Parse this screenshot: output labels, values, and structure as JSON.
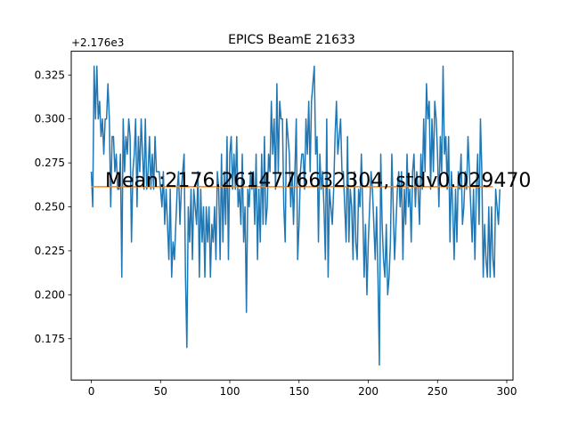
{
  "chart_data": {
    "type": "line",
    "title": "EPICS BeamE 21633",
    "xlabel": "",
    "ylabel": "",
    "y_offset_label": "+2.176e3",
    "xlim": [
      -14.5,
      304.5
    ],
    "ylim": [
      0.1515,
      0.3385
    ],
    "x_ticks": [
      0,
      50,
      100,
      150,
      200,
      250,
      300
    ],
    "x_tick_labels": [
      "0",
      "50",
      "100",
      "150",
      "200",
      "250",
      "300"
    ],
    "y_ticks": [
      0.175,
      0.2,
      0.225,
      0.25,
      0.275,
      0.3,
      0.325
    ],
    "y_tick_labels": [
      "0.175",
      "0.200",
      "0.225",
      "0.250",
      "0.275",
      "0.300",
      "0.325"
    ],
    "grid": false,
    "annotation": "Mean:2176.2614776632304, stdv0.029470",
    "series": [
      {
        "color": "#1f77b4",
        "x_start": 0,
        "values": [
          0.27,
          0.25,
          0.33,
          0.3,
          0.33,
          0.3,
          0.31,
          0.29,
          0.3,
          0.28,
          0.3,
          0.3,
          0.32,
          0.3,
          0.25,
          0.29,
          0.29,
          0.27,
          0.28,
          0.26,
          0.26,
          0.28,
          0.21,
          0.3,
          0.27,
          0.29,
          0.28,
          0.3,
          0.29,
          0.23,
          0.27,
          0.28,
          0.3,
          0.25,
          0.29,
          0.27,
          0.3,
          0.28,
          0.26,
          0.3,
          0.26,
          0.27,
          0.29,
          0.26,
          0.28,
          0.26,
          0.29,
          0.27,
          0.27,
          0.27,
          0.26,
          0.25,
          0.27,
          0.24,
          0.26,
          0.24,
          0.22,
          0.26,
          0.21,
          0.23,
          0.22,
          0.24,
          0.26,
          0.27,
          0.24,
          0.26,
          0.27,
          0.28,
          0.21,
          0.17,
          0.25,
          0.23,
          0.26,
          0.22,
          0.26,
          0.25,
          0.24,
          0.27,
          0.21,
          0.26,
          0.23,
          0.25,
          0.21,
          0.25,
          0.23,
          0.25,
          0.21,
          0.24,
          0.23,
          0.25,
          0.22,
          0.27,
          0.26,
          0.22,
          0.28,
          0.23,
          0.27,
          0.24,
          0.29,
          0.22,
          0.28,
          0.29,
          0.26,
          0.28,
          0.26,
          0.29,
          0.25,
          0.26,
          0.24,
          0.28,
          0.23,
          0.25,
          0.19,
          0.26,
          0.25,
          0.27,
          0.26,
          0.27,
          0.24,
          0.28,
          0.22,
          0.26,
          0.23,
          0.28,
          0.24,
          0.29,
          0.24,
          0.25,
          0.28,
          0.27,
          0.31,
          0.28,
          0.3,
          0.26,
          0.32,
          0.27,
          0.31,
          0.3,
          0.3,
          0.25,
          0.23,
          0.3,
          0.29,
          0.28,
          0.25,
          0.27,
          0.24,
          0.27,
          0.3,
          0.22,
          0.24,
          0.27,
          0.28,
          0.28,
          0.26,
          0.3,
          0.28,
          0.31,
          0.27,
          0.31,
          0.32,
          0.33,
          0.28,
          0.29,
          0.23,
          0.28,
          0.26,
          0.27,
          0.25,
          0.22,
          0.3,
          0.21,
          0.26,
          0.25,
          0.24,
          0.26,
          0.29,
          0.31,
          0.28,
          0.29,
          0.3,
          0.27,
          0.27,
          0.25,
          0.23,
          0.29,
          0.23,
          0.26,
          0.25,
          0.22,
          0.27,
          0.23,
          0.22,
          0.26,
          0.25,
          0.28,
          0.25,
          0.21,
          0.24,
          0.2,
          0.23,
          0.25,
          0.27,
          0.26,
          0.24,
          0.22,
          0.25,
          0.21,
          0.16,
          0.28,
          0.24,
          0.22,
          0.21,
          0.24,
          0.2,
          0.21,
          0.23,
          0.28,
          0.25,
          0.22,
          0.24,
          0.26,
          0.27,
          0.25,
          0.27,
          0.22,
          0.26,
          0.24,
          0.28,
          0.25,
          0.26,
          0.23,
          0.27,
          0.28,
          0.25,
          0.27,
          0.26,
          0.24,
          0.28,
          0.26,
          0.3,
          0.27,
          0.32,
          0.3,
          0.31,
          0.26,
          0.3,
          0.27,
          0.31,
          0.3,
          0.28,
          0.25,
          0.29,
          0.27,
          0.33,
          0.28,
          0.29,
          0.26,
          0.29,
          0.23,
          0.27,
          0.25,
          0.22,
          0.26,
          0.23,
          0.27,
          0.26,
          0.28,
          0.24,
          0.25,
          0.27,
          0.26,
          0.29,
          0.27,
          0.25,
          0.23,
          0.26,
          0.22,
          0.26,
          0.28,
          0.24,
          0.3,
          0.27,
          0.21,
          0.24,
          0.22,
          0.21,
          0.25,
          0.21,
          0.25,
          0.22,
          0.21,
          0.26,
          0.25,
          0.24,
          0.26
        ]
      },
      {
        "color": "#ff7f0e",
        "x": [
          0,
          290
        ],
        "values": [
          0.2614776632304,
          0.2614776632304
        ]
      }
    ]
  }
}
